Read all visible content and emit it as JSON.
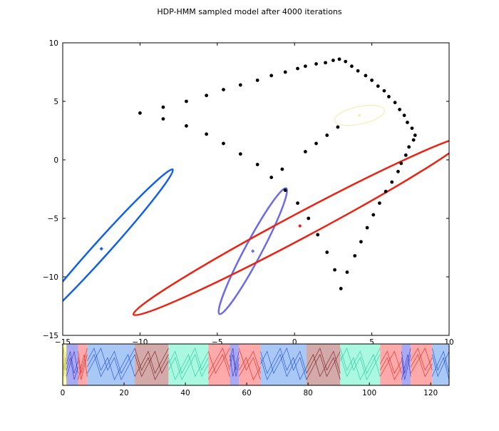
{
  "chart_data": [
    {
      "type": "scatter",
      "title": "HDP-HMM sampled model after 4000 iterations",
      "xlabel": "",
      "ylabel": "",
      "xlim": [
        -15,
        10
      ],
      "ylim": [
        -15,
        10
      ],
      "xticks": [
        -15,
        -10,
        -5,
        0,
        5,
        10
      ],
      "yticks": [
        -15,
        -10,
        -5,
        0,
        5,
        10
      ],
      "grid": false,
      "points": [
        [
          -10,
          4
        ],
        [
          -8.5,
          4.5
        ],
        [
          -8.5,
          3.5
        ],
        [
          -7,
          5
        ],
        [
          -7,
          2.9
        ],
        [
          -5.7,
          5.5
        ],
        [
          -5.7,
          2.2
        ],
        [
          -4.6,
          6
        ],
        [
          -4.6,
          1.4
        ],
        [
          -3.5,
          6.4
        ],
        [
          -3.5,
          0.5
        ],
        [
          -2.4,
          6.8
        ],
        [
          -2.4,
          -0.4
        ],
        [
          -1.5,
          7.2
        ],
        [
          -1.5,
          -1.5
        ],
        [
          -0.8,
          -0.8
        ],
        [
          -0.6,
          7.5
        ],
        [
          -0.6,
          -2.6
        ],
        [
          0.2,
          7.8
        ],
        [
          0.2,
          -3.7
        ],
        [
          0.7,
          8
        ],
        [
          0.7,
          0.7
        ],
        [
          0.9,
          -5
        ],
        [
          1.4,
          8.2
        ],
        [
          1.4,
          1.4
        ],
        [
          1.5,
          -6.4
        ],
        [
          2,
          8.3
        ],
        [
          2.1,
          2.1
        ],
        [
          2.1,
          -7.9
        ],
        [
          2.5,
          8.5
        ],
        [
          2.6,
          -9.4
        ],
        [
          2.8,
          2.8
        ],
        [
          2.9,
          8.6
        ],
        [
          3,
          -11
        ],
        [
          3.3,
          8.4
        ],
        [
          3.4,
          -9.6
        ],
        [
          3.7,
          8
        ],
        [
          3.9,
          -8.2
        ],
        [
          4.1,
          7.6
        ],
        [
          4.3,
          -7
        ],
        [
          4.6,
          7.2
        ],
        [
          4.7,
          -5.8
        ],
        [
          5,
          6.8
        ],
        [
          5.1,
          -4.7
        ],
        [
          5.4,
          6.3
        ],
        [
          5.5,
          -3.7
        ],
        [
          5.8,
          5.9
        ],
        [
          5.9,
          -2.7
        ],
        [
          6.1,
          5.4
        ],
        [
          6.3,
          -1.9
        ],
        [
          6.5,
          4.9
        ],
        [
          6.7,
          -1
        ],
        [
          6.8,
          4.3
        ],
        [
          6.9,
          -0.3
        ],
        [
          7.1,
          3.8
        ],
        [
          7.2,
          0.4
        ],
        [
          7.3,
          3.2
        ],
        [
          7.4,
          1.1
        ],
        [
          7.6,
          2.7
        ],
        [
          7.7,
          1.7
        ],
        [
          7.8,
          2.1
        ]
      ],
      "ellipses": [
        {
          "cx": -12.5,
          "cy": -7.6,
          "rx": 6.9,
          "ry": 0.66,
          "angle_deg": 48,
          "color": "#1060e8",
          "lw": 2.5
        },
        {
          "cx": -2.7,
          "cy": -7.8,
          "rx": 4.6,
          "ry": 0.72,
          "angle_deg": 62,
          "color": "#6a6aea",
          "lw": 2.5
        },
        {
          "cx": 0.35,
          "cy": -5.65,
          "rx": 12.2,
          "ry": 1.05,
          "angle_deg": 28,
          "color": "#ee2010",
          "lw": 2.5
        },
        {
          "cx": 4.2,
          "cy": 3.8,
          "rx": 1.65,
          "ry": 0.75,
          "angle_deg": 12,
          "color": "#f0f0b8",
          "lw": 1.2
        }
      ],
      "centers": [
        {
          "x": -12.5,
          "y": -7.6,
          "color": "#1060e8"
        },
        {
          "x": -2.7,
          "y": -7.8,
          "color": "#6a6aea"
        },
        {
          "x": 0.35,
          "y": -5.65,
          "color": "#ee2010"
        },
        {
          "x": 4.2,
          "y": 3.8,
          "color": "#f0f0b8"
        }
      ]
    },
    {
      "type": "line",
      "xlim": [
        0,
        126
      ],
      "xticks": [
        0,
        20,
        40,
        60,
        80,
        100,
        120
      ],
      "regions": [
        {
          "start": 0,
          "end": 1.2,
          "color": "#ffffb0"
        },
        {
          "start": 1.2,
          "end": 5,
          "color": "#aaaaf2"
        },
        {
          "start": 5,
          "end": 8,
          "color": "#ffaaaa"
        },
        {
          "start": 8,
          "end": 23.5,
          "color": "#aac8f6"
        },
        {
          "start": 23.5,
          "end": 34.5,
          "color": "#d4a9a9"
        },
        {
          "start": 34.5,
          "end": 47.5,
          "color": "#aaf8e0"
        },
        {
          "start": 47.5,
          "end": 54.5,
          "color": "#ffaaaa"
        },
        {
          "start": 54.5,
          "end": 57.5,
          "color": "#aaaaf2"
        },
        {
          "start": 57.5,
          "end": 64.5,
          "color": "#ffaaaa"
        },
        {
          "start": 64.5,
          "end": 79.5,
          "color": "#aac8f6"
        },
        {
          "start": 79.5,
          "end": 90.5,
          "color": "#d4a9a9"
        },
        {
          "start": 90.5,
          "end": 103.5,
          "color": "#aaf8e0"
        },
        {
          "start": 103.5,
          "end": 110.5,
          "color": "#ffaaaa"
        },
        {
          "start": 110.5,
          "end": 113.5,
          "color": "#aaaaf2"
        },
        {
          "start": 113.5,
          "end": 120.5,
          "color": "#ffaaaa"
        },
        {
          "start": 120.5,
          "end": 126,
          "color": "#aac8f6"
        }
      ]
    }
  ]
}
